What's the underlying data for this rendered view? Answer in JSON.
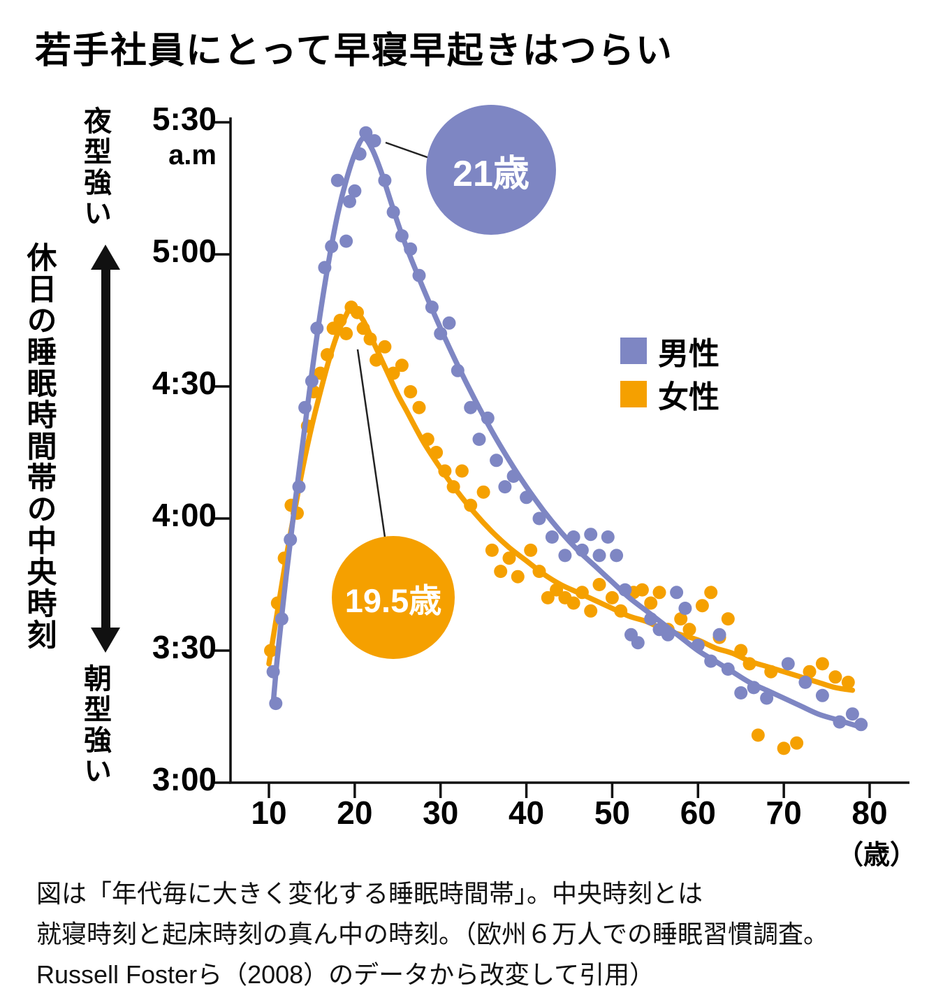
{
  "chart_data": {
    "type": "scatter",
    "title": "若手社員にとって早寝早起きはつらい",
    "x_axis": {
      "ticks": [
        10,
        20,
        30,
        40,
        50,
        60,
        70,
        80
      ],
      "unit_label": "（歳）",
      "range": [
        5.5,
        84.5
      ]
    },
    "y_axis": {
      "axis_label": "休日の睡眠時間帯の中央時刻",
      "top_label": "夜型強い",
      "bottom_label": "朝型強い",
      "range_hours": [
        3.0,
        5.5
      ],
      "ticks": [
        {
          "label": "5:30",
          "sub": "a.m",
          "value": 5.5
        },
        {
          "label": "5:00",
          "value": 5.0
        },
        {
          "label": "4:30",
          "value": 4.5
        },
        {
          "label": "4:00",
          "value": 4.0
        },
        {
          "label": "3:30",
          "value": 3.5
        },
        {
          "label": "3:00",
          "value": 3.0
        }
      ]
    },
    "series": [
      {
        "name": "男性",
        "color": "#7e86c3",
        "peak_label": "21歳",
        "peak_age": 21,
        "curve": [
          [
            10.5,
            3.3
          ],
          [
            11,
            3.48
          ],
          [
            12,
            3.78
          ],
          [
            13,
            4.05
          ],
          [
            14,
            4.3
          ],
          [
            15,
            4.55
          ],
          [
            16,
            4.78
          ],
          [
            17,
            4.98
          ],
          [
            18,
            5.15
          ],
          [
            19,
            5.28
          ],
          [
            20,
            5.38
          ],
          [
            21,
            5.44
          ],
          [
            22,
            5.4
          ],
          [
            23,
            5.32
          ],
          [
            24,
            5.22
          ],
          [
            25,
            5.12
          ],
          [
            26,
            5.03
          ],
          [
            28,
            4.87
          ],
          [
            30,
            4.72
          ],
          [
            32,
            4.58
          ],
          [
            34,
            4.45
          ],
          [
            36,
            4.33
          ],
          [
            38,
            4.22
          ],
          [
            40,
            4.12
          ],
          [
            42,
            4.03
          ],
          [
            44,
            3.95
          ],
          [
            46,
            3.88
          ],
          [
            48,
            3.82
          ],
          [
            50,
            3.76
          ],
          [
            52,
            3.7
          ],
          [
            54,
            3.65
          ],
          [
            56,
            3.6
          ],
          [
            58,
            3.55
          ],
          [
            60,
            3.5
          ],
          [
            62,
            3.46
          ],
          [
            64,
            3.42
          ],
          [
            66,
            3.38
          ],
          [
            68,
            3.35
          ],
          [
            70,
            3.32
          ],
          [
            72,
            3.29
          ],
          [
            74,
            3.26
          ],
          [
            76,
            3.24
          ],
          [
            78,
            3.22
          ],
          [
            79,
            3.21
          ]
        ],
        "points": [
          [
            10.5,
            3.42
          ],
          [
            10.8,
            3.3
          ],
          [
            11.5,
            3.62
          ],
          [
            12.5,
            3.92
          ],
          [
            13.5,
            4.12
          ],
          [
            14.2,
            4.42
          ],
          [
            15,
            4.52
          ],
          [
            15.6,
            4.72
          ],
          [
            16.5,
            4.95
          ],
          [
            17.3,
            5.03
          ],
          [
            18,
            5.28
          ],
          [
            19,
            5.05
          ],
          [
            19.4,
            5.2
          ],
          [
            20,
            5.24
          ],
          [
            20.6,
            5.38
          ],
          [
            21.3,
            5.46
          ],
          [
            22.3,
            5.43
          ],
          [
            23.5,
            5.28
          ],
          [
            24.5,
            5.16
          ],
          [
            25.5,
            5.07
          ],
          [
            26.5,
            5.02
          ],
          [
            27.5,
            4.92
          ],
          [
            29,
            4.8
          ],
          [
            30,
            4.7
          ],
          [
            31,
            4.74
          ],
          [
            32,
            4.56
          ],
          [
            33.5,
            4.42
          ],
          [
            34.5,
            4.3
          ],
          [
            35.5,
            4.38
          ],
          [
            36.5,
            4.22
          ],
          [
            37.5,
            4.12
          ],
          [
            38.5,
            4.16
          ],
          [
            40,
            4.08
          ],
          [
            41.5,
            4.0
          ],
          [
            43,
            3.93
          ],
          [
            44.5,
            3.86
          ],
          [
            45.5,
            3.93
          ],
          [
            46.5,
            3.88
          ],
          [
            47.5,
            3.94
          ],
          [
            48.5,
            3.86
          ],
          [
            49.5,
            3.93
          ],
          [
            50.5,
            3.86
          ],
          [
            51.5,
            3.73
          ],
          [
            52.2,
            3.56
          ],
          [
            53,
            3.53
          ],
          [
            54.5,
            3.62
          ],
          [
            55.5,
            3.58
          ],
          [
            56.5,
            3.56
          ],
          [
            57.5,
            3.72
          ],
          [
            58.5,
            3.66
          ],
          [
            60,
            3.52
          ],
          [
            61.5,
            3.46
          ],
          [
            62.5,
            3.56
          ],
          [
            63.5,
            3.43
          ],
          [
            65,
            3.34
          ],
          [
            66.5,
            3.36
          ],
          [
            68,
            3.32
          ],
          [
            70.5,
            3.45
          ],
          [
            72.5,
            3.38
          ],
          [
            74.5,
            3.33
          ],
          [
            76.5,
            3.23
          ],
          [
            78,
            3.26
          ],
          [
            79,
            3.22
          ]
        ]
      },
      {
        "name": "女性",
        "color": "#f5a000",
        "peak_label": "19.5歳",
        "peak_age": 19.5,
        "curve": [
          [
            10,
            3.45
          ],
          [
            11,
            3.65
          ],
          [
            12,
            3.85
          ],
          [
            13,
            4.03
          ],
          [
            14,
            4.2
          ],
          [
            15,
            4.35
          ],
          [
            16,
            4.48
          ],
          [
            17,
            4.6
          ],
          [
            18,
            4.7
          ],
          [
            19,
            4.77
          ],
          [
            19.5,
            4.8
          ],
          [
            20,
            4.79
          ],
          [
            21,
            4.75
          ],
          [
            22,
            4.68
          ],
          [
            23,
            4.61
          ],
          [
            24,
            4.54
          ],
          [
            25,
            4.47
          ],
          [
            26,
            4.41
          ],
          [
            28,
            4.29
          ],
          [
            30,
            4.19
          ],
          [
            32,
            4.1
          ],
          [
            34,
            4.02
          ],
          [
            36,
            3.95
          ],
          [
            38,
            3.89
          ],
          [
            40,
            3.84
          ],
          [
            42,
            3.79
          ],
          [
            44,
            3.75
          ],
          [
            46,
            3.72
          ],
          [
            48,
            3.69
          ],
          [
            50,
            3.66
          ],
          [
            52,
            3.63
          ],
          [
            54,
            3.61
          ],
          [
            56,
            3.58
          ],
          [
            58,
            3.56
          ],
          [
            60,
            3.54
          ],
          [
            62,
            3.51
          ],
          [
            64,
            3.49
          ],
          [
            66,
            3.46
          ],
          [
            68,
            3.44
          ],
          [
            70,
            3.42
          ],
          [
            72,
            3.4
          ],
          [
            74,
            3.38
          ],
          [
            76,
            3.36
          ],
          [
            78,
            3.35
          ]
        ],
        "points": [
          [
            10.2,
            3.5
          ],
          [
            11,
            3.68
          ],
          [
            11.8,
            3.85
          ],
          [
            12.6,
            4.05
          ],
          [
            13.3,
            4.02
          ],
          [
            14.5,
            4.35
          ],
          [
            15.2,
            4.48
          ],
          [
            16,
            4.55
          ],
          [
            16.8,
            4.62
          ],
          [
            17.5,
            4.72
          ],
          [
            18.3,
            4.75
          ],
          [
            19,
            4.7
          ],
          [
            19.6,
            4.8
          ],
          [
            20.3,
            4.78
          ],
          [
            21,
            4.72
          ],
          [
            21.8,
            4.68
          ],
          [
            22.5,
            4.6
          ],
          [
            23.5,
            4.65
          ],
          [
            24.5,
            4.55
          ],
          [
            25.5,
            4.58
          ],
          [
            26.5,
            4.48
          ],
          [
            27.5,
            4.42
          ],
          [
            28.5,
            4.3
          ],
          [
            29.5,
            4.25
          ],
          [
            30.5,
            4.18
          ],
          [
            31.5,
            4.12
          ],
          [
            32.5,
            4.18
          ],
          [
            33.5,
            4.05
          ],
          [
            35,
            4.1
          ],
          [
            36,
            3.88
          ],
          [
            37,
            3.8
          ],
          [
            38,
            3.85
          ],
          [
            39,
            3.78
          ],
          [
            40.5,
            3.88
          ],
          [
            41.5,
            3.8
          ],
          [
            42.5,
            3.7
          ],
          [
            43.5,
            3.73
          ],
          [
            44.5,
            3.7
          ],
          [
            45.5,
            3.68
          ],
          [
            46.5,
            3.72
          ],
          [
            47.5,
            3.65
          ],
          [
            48.5,
            3.75
          ],
          [
            50,
            3.7
          ],
          [
            51,
            3.65
          ],
          [
            52.5,
            3.72
          ],
          [
            53.5,
            3.73
          ],
          [
            54.5,
            3.68
          ],
          [
            55.5,
            3.72
          ],
          [
            56.5,
            3.58
          ],
          [
            58,
            3.62
          ],
          [
            59,
            3.58
          ],
          [
            60.5,
            3.67
          ],
          [
            61.5,
            3.72
          ],
          [
            62.5,
            3.55
          ],
          [
            63.5,
            3.62
          ],
          [
            65,
            3.5
          ],
          [
            66,
            3.45
          ],
          [
            67,
            3.18
          ],
          [
            68.5,
            3.42
          ],
          [
            70,
            3.13
          ],
          [
            71.5,
            3.15
          ],
          [
            73,
            3.42
          ],
          [
            74.5,
            3.45
          ],
          [
            76,
            3.4
          ],
          [
            77.5,
            3.38
          ]
        ]
      }
    ],
    "caption_lines": [
      "図は「年代毎に大きく変化する睡眠時間帯」。中央時刻とは",
      "就寝時刻と起床時刻の真ん中の時刻。（欧州６万人での睡眠習慣調査。",
      "Russell Fosterら（2008）のデータから改変して引用）"
    ]
  }
}
